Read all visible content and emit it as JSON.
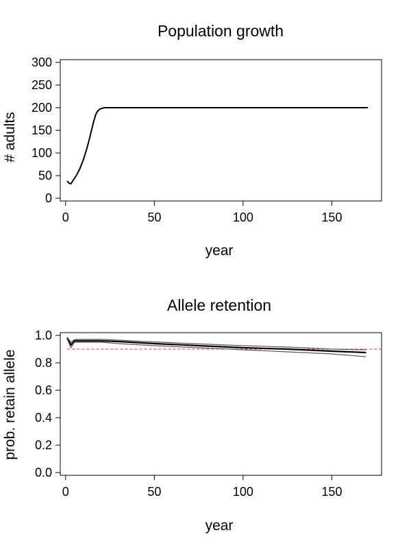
{
  "chart_data": [
    {
      "type": "line",
      "title": "Population growth",
      "xlabel": "year",
      "ylabel": "# adults",
      "xlim": [
        -3,
        178
      ],
      "ylim": [
        -6,
        306
      ],
      "xticks": [
        0,
        50,
        100,
        150
      ],
      "yticks": [
        0,
        50,
        100,
        150,
        200,
        250,
        300
      ],
      "grid": false,
      "colors": {
        "line": "#000000"
      },
      "series": [
        {
          "x": [
            1,
            2,
            3,
            4,
            6,
            8,
            10,
            12,
            14,
            16,
            17,
            18,
            19,
            20,
            22,
            25,
            30,
            50,
            100,
            150,
            170
          ],
          "values": [
            37,
            33,
            32,
            38,
            50,
            65,
            85,
            110,
            140,
            172,
            185,
            192,
            196,
            198,
            200,
            200,
            200,
            200,
            200,
            200,
            200
          ]
        }
      ]
    },
    {
      "type": "line",
      "title": "Allele retention",
      "xlabel": "year",
      "ylabel": "prob. retain allele",
      "xlim": [
        -3,
        178
      ],
      "ylim": [
        -0.02,
        1.02
      ],
      "xticks": [
        0,
        50,
        100,
        150
      ],
      "yticks": [
        0.0,
        0.2,
        0.4,
        0.6,
        0.8,
        1.0
      ],
      "grid": false,
      "colors": {
        "mean": "#000000",
        "bounds": "#555555",
        "reference": "#e03030"
      },
      "reference_line": 0.9,
      "series": [
        {
          "x": [
            1,
            3,
            5,
            10,
            20,
            30,
            50,
            75,
            100,
            125,
            150,
            169
          ],
          "values": [
            0.98,
            0.93,
            0.96,
            0.96,
            0.96,
            0.955,
            0.94,
            0.925,
            0.91,
            0.9,
            0.885,
            0.875
          ]
        },
        {
          "x": [
            1,
            3,
            5,
            10,
            20,
            30,
            50,
            75,
            100,
            125,
            150,
            169
          ],
          "values": [
            0.985,
            0.95,
            0.97,
            0.972,
            0.972,
            0.965,
            0.952,
            0.938,
            0.925,
            0.915,
            0.9,
            0.895
          ]
        },
        {
          "x": [
            1,
            3,
            5,
            10,
            20,
            30,
            50,
            75,
            100,
            125,
            150,
            169
          ],
          "values": [
            0.97,
            0.91,
            0.95,
            0.95,
            0.95,
            0.94,
            0.925,
            0.91,
            0.895,
            0.88,
            0.865,
            0.845
          ]
        }
      ]
    }
  ]
}
